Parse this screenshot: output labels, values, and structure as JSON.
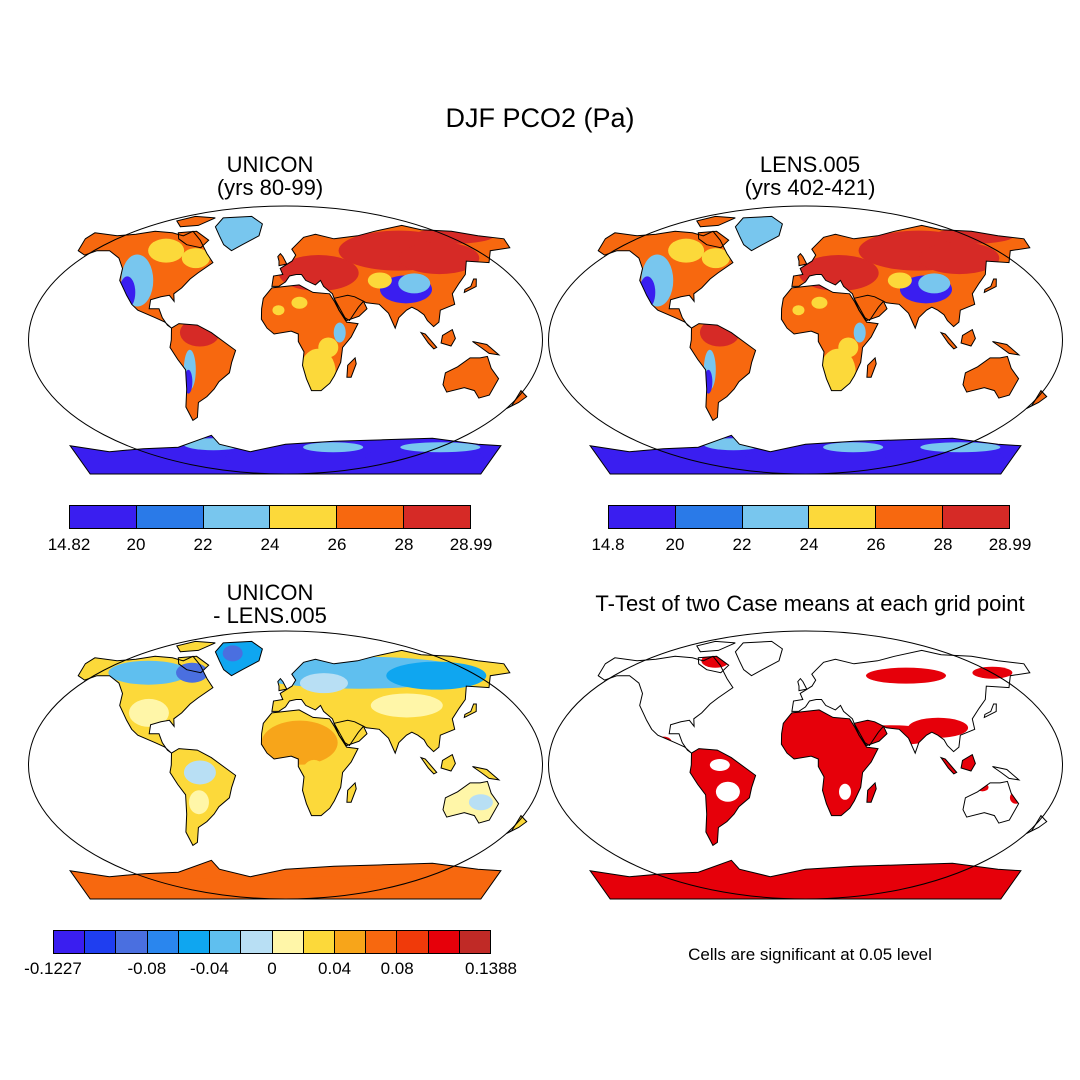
{
  "title": "DJF PCO2 (Pa)",
  "panels": {
    "unicon": {
      "title_line1": "UNICON",
      "title_line2": "(yrs 80-99)"
    },
    "lens": {
      "title_line1": "LENS.005",
      "title_line2": "(yrs 402-421)"
    },
    "diff": {
      "title_line1": "UNICON",
      "title_line2": "- LENS.005"
    },
    "ttest": {
      "title": "T-Test of two Case means at each grid point",
      "note": "Cells are significant at 0.05 level",
      "significant_color": "#e6000a"
    }
  },
  "colorbars": {
    "unicon": {
      "colors": [
        "#3a1ef0",
        "#2a7ae8",
        "#78c6ee",
        "#fcd93a",
        "#f7680f",
        "#d62a26"
      ],
      "ticks": [
        "14.82",
        "20",
        "22",
        "24",
        "26",
        "28",
        "28.99"
      ]
    },
    "lens": {
      "colors": [
        "#3a1ef0",
        "#2a7ae8",
        "#78c6ee",
        "#fcd93a",
        "#f7680f",
        "#d62a26"
      ],
      "ticks": [
        "14.8",
        "20",
        "22",
        "24",
        "26",
        "28",
        "28.99"
      ]
    },
    "diff": {
      "colors": [
        "#3a1ef0",
        "#1f3ef0",
        "#4a6fe0",
        "#2a86ee",
        "#0fa6f0",
        "#5fbfef",
        "#b8dff4",
        "#fff6a8",
        "#fcd93a",
        "#f7a51a",
        "#f7680f",
        "#f03a0a",
        "#e6000a",
        "#c02a26"
      ],
      "ticks": [
        {
          "label": "-0.1227",
          "at": 0
        },
        {
          "label": "-0.08",
          "at": 3
        },
        {
          "label": "-0.04",
          "at": 5
        },
        {
          "label": "0",
          "at": 7
        },
        {
          "label": "0.04",
          "at": 9
        },
        {
          "label": "0.08",
          "at": 11
        },
        {
          "label": "0.1388",
          "at": 14
        }
      ]
    }
  }
}
